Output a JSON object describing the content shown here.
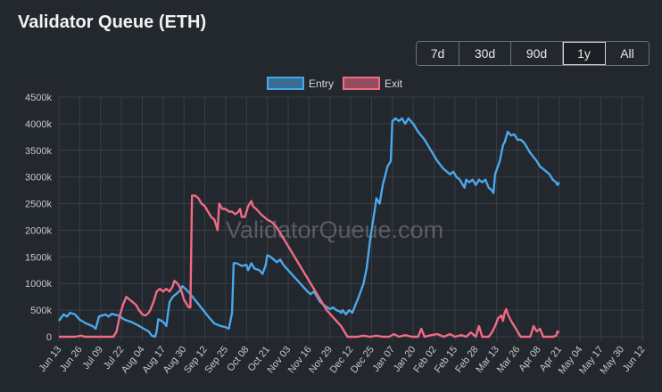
{
  "header": {
    "title": "Validator Queue (ETH)"
  },
  "range_buttons": [
    {
      "label": "7d",
      "active": false
    },
    {
      "label": "30d",
      "active": false
    },
    {
      "label": "90d",
      "active": false
    },
    {
      "label": "1y",
      "active": true
    },
    {
      "label": "All",
      "active": false
    }
  ],
  "watermark": "ValidatorQueue.com",
  "chart_data": {
    "type": "line",
    "title": "Validator Queue (ETH)",
    "xlabel": "",
    "ylabel": "",
    "ylim": [
      0,
      4500000
    ],
    "grid": true,
    "legend_position": "top-center",
    "y_ticks": [
      "0",
      "500k",
      "1000k",
      "1500k",
      "2000k",
      "2500k",
      "3000k",
      "3500k",
      "4000k",
      "4500k"
    ],
    "x_ticks": [
      "Jun 13",
      "Jun 26",
      "Jul 09",
      "Jul 22",
      "Aug 04",
      "Aug 17",
      "Aug 30",
      "Sep 12",
      "Sep 25",
      "Oct 08",
      "Oct 21",
      "Nov 03",
      "Nov 16",
      "Nov 29",
      "Dec 12",
      "Dec 25",
      "Jan 07",
      "Jan 20",
      "Feb 02",
      "Feb 15",
      "Feb 28",
      "Mar 13",
      "Mar 26",
      "Apr 08",
      "Apr 21",
      "May 04",
      "May 17",
      "May 30",
      "Jun 12"
    ],
    "series": [
      {
        "name": "Entry",
        "color": "#4aa8ea",
        "points": [
          [
            0,
            300000
          ],
          [
            3,
            420000
          ],
          [
            5,
            380000
          ],
          [
            7,
            450000
          ],
          [
            10,
            420000
          ],
          [
            13,
            320000
          ],
          [
            17,
            250000
          ],
          [
            21,
            200000
          ],
          [
            23,
            150000
          ],
          [
            25,
            380000
          ],
          [
            29,
            420000
          ],
          [
            31,
            380000
          ],
          [
            33,
            430000
          ],
          [
            37,
            400000
          ],
          [
            41,
            320000
          ],
          [
            45,
            280000
          ],
          [
            49,
            220000
          ],
          [
            53,
            150000
          ],
          [
            56,
            100000
          ],
          [
            58,
            20000
          ],
          [
            60,
            0
          ],
          [
            61,
            100000
          ],
          [
            62,
            330000
          ],
          [
            64,
            300000
          ],
          [
            66,
            250000
          ],
          [
            67,
            200000
          ],
          [
            69,
            650000
          ],
          [
            71,
            750000
          ],
          [
            73,
            800000
          ],
          [
            75,
            850000
          ],
          [
            77,
            950000
          ],
          [
            79,
            900000
          ],
          [
            82,
            800000
          ],
          [
            86,
            650000
          ],
          [
            90,
            500000
          ],
          [
            94,
            350000
          ],
          [
            97,
            250000
          ],
          [
            101,
            200000
          ],
          [
            104,
            180000
          ],
          [
            106,
            150000
          ],
          [
            108,
            450000
          ],
          [
            109,
            1380000
          ],
          [
            111,
            1380000
          ],
          [
            114,
            1330000
          ],
          [
            117,
            1350000
          ],
          [
            118,
            1250000
          ],
          [
            120,
            1380000
          ],
          [
            122,
            1280000
          ],
          [
            125,
            1250000
          ],
          [
            127,
            1180000
          ],
          [
            129,
            1350000
          ],
          [
            130,
            1530000
          ],
          [
            132,
            1500000
          ],
          [
            134,
            1450000
          ],
          [
            136,
            1400000
          ],
          [
            138,
            1450000
          ],
          [
            140,
            1350000
          ],
          [
            143,
            1250000
          ],
          [
            146,
            1150000
          ],
          [
            149,
            1050000
          ],
          [
            152,
            950000
          ],
          [
            155,
            850000
          ],
          [
            157,
            800000
          ],
          [
            159,
            850000
          ],
          [
            161,
            750000
          ],
          [
            163,
            650000
          ],
          [
            166,
            580000
          ],
          [
            169,
            520000
          ],
          [
            171,
            550000
          ],
          [
            173,
            500000
          ],
          [
            175,
            480000
          ],
          [
            176,
            450000
          ],
          [
            177,
            500000
          ],
          [
            178,
            460000
          ],
          [
            179,
            420000
          ],
          [
            181,
            500000
          ],
          [
            183,
            450000
          ],
          [
            185,
            600000
          ],
          [
            187,
            750000
          ],
          [
            190,
            1000000
          ],
          [
            192,
            1300000
          ],
          [
            194,
            1800000
          ],
          [
            196,
            2200000
          ],
          [
            198,
            2600000
          ],
          [
            200,
            2500000
          ],
          [
            202,
            2850000
          ],
          [
            205,
            3200000
          ],
          [
            207,
            3300000
          ],
          [
            208,
            4050000
          ],
          [
            210,
            4100000
          ],
          [
            212,
            4050000
          ],
          [
            214,
            4100000
          ],
          [
            216,
            4000000
          ],
          [
            218,
            4100000
          ],
          [
            221,
            4000000
          ],
          [
            224,
            3850000
          ],
          [
            228,
            3700000
          ],
          [
            232,
            3500000
          ],
          [
            236,
            3300000
          ],
          [
            240,
            3150000
          ],
          [
            244,
            3050000
          ],
          [
            246,
            3100000
          ],
          [
            248,
            3000000
          ],
          [
            250,
            2950000
          ],
          [
            252,
            2850000
          ],
          [
            253,
            2800000
          ],
          [
            254,
            2950000
          ],
          [
            256,
            2900000
          ],
          [
            258,
            2950000
          ],
          [
            260,
            2850000
          ],
          [
            262,
            2950000
          ],
          [
            264,
            2900000
          ],
          [
            266,
            2950000
          ],
          [
            268,
            2800000
          ],
          [
            270,
            2750000
          ],
          [
            271,
            2700000
          ],
          [
            272,
            3050000
          ],
          [
            275,
            3300000
          ],
          [
            277,
            3600000
          ],
          [
            278,
            3650000
          ],
          [
            280,
            3850000
          ],
          [
            282,
            3780000
          ],
          [
            284,
            3800000
          ],
          [
            286,
            3700000
          ],
          [
            288,
            3700000
          ],
          [
            290,
            3650000
          ],
          [
            294,
            3450000
          ],
          [
            298,
            3300000
          ],
          [
            300,
            3200000
          ],
          [
            302,
            3150000
          ],
          [
            304,
            3100000
          ],
          [
            306,
            3050000
          ],
          [
            308,
            2950000
          ],
          [
            310,
            2900000
          ],
          [
            311,
            2850000
          ],
          [
            312,
            2900000
          ]
        ]
      },
      {
        "name": "Exit",
        "color": "#f26b85",
        "points": [
          [
            0,
            0
          ],
          [
            5,
            0
          ],
          [
            10,
            0
          ],
          [
            14,
            20000
          ],
          [
            16,
            0
          ],
          [
            22,
            0
          ],
          [
            26,
            0
          ],
          [
            30,
            0
          ],
          [
            34,
            0
          ],
          [
            36,
            100000
          ],
          [
            38,
            400000
          ],
          [
            40,
            600000
          ],
          [
            42,
            750000
          ],
          [
            44,
            700000
          ],
          [
            46,
            650000
          ],
          [
            48,
            600000
          ],
          [
            50,
            500000
          ],
          [
            52,
            420000
          ],
          [
            54,
            400000
          ],
          [
            56,
            450000
          ],
          [
            57,
            500000
          ],
          [
            59,
            650000
          ],
          [
            61,
            850000
          ],
          [
            63,
            900000
          ],
          [
            65,
            850000
          ],
          [
            67,
            900000
          ],
          [
            69,
            850000
          ],
          [
            71,
            950000
          ],
          [
            72,
            1050000
          ],
          [
            74,
            1000000
          ],
          [
            76,
            900000
          ],
          [
            78,
            700000
          ],
          [
            80,
            600000
          ],
          [
            81,
            550000
          ],
          [
            82,
            550000
          ],
          [
            83,
            2650000
          ],
          [
            85,
            2650000
          ],
          [
            87,
            2600000
          ],
          [
            89,
            2500000
          ],
          [
            91,
            2450000
          ],
          [
            93,
            2350000
          ],
          [
            95,
            2250000
          ],
          [
            97,
            2200000
          ],
          [
            98,
            2100000
          ],
          [
            99,
            2000000
          ],
          [
            100,
            2500000
          ],
          [
            102,
            2400000
          ],
          [
            104,
            2400000
          ],
          [
            106,
            2350000
          ],
          [
            108,
            2350000
          ],
          [
            110,
            2300000
          ],
          [
            112,
            2350000
          ],
          [
            113,
            2400000
          ],
          [
            114,
            2250000
          ],
          [
            116,
            2250000
          ],
          [
            118,
            2450000
          ],
          [
            120,
            2550000
          ],
          [
            121,
            2450000
          ],
          [
            123,
            2400000
          ],
          [
            126,
            2300000
          ],
          [
            128,
            2250000
          ],
          [
            130,
            2200000
          ],
          [
            133,
            2150000
          ],
          [
            136,
            2050000
          ],
          [
            139,
            1900000
          ],
          [
            142,
            1750000
          ],
          [
            145,
            1600000
          ],
          [
            148,
            1450000
          ],
          [
            151,
            1300000
          ],
          [
            154,
            1150000
          ],
          [
            157,
            1000000
          ],
          [
            160,
            850000
          ],
          [
            163,
            700000
          ],
          [
            165,
            600000
          ],
          [
            167,
            500000
          ],
          [
            170,
            400000
          ],
          [
            173,
            300000
          ],
          [
            176,
            200000
          ],
          [
            178,
            100000
          ],
          [
            180,
            0
          ],
          [
            186,
            0
          ],
          [
            190,
            20000
          ],
          [
            194,
            0
          ],
          [
            198,
            20000
          ],
          [
            202,
            0
          ],
          [
            206,
            0
          ],
          [
            209,
            50000
          ],
          [
            212,
            0
          ],
          [
            216,
            30000
          ],
          [
            220,
            0
          ],
          [
            224,
            0
          ],
          [
            226,
            150000
          ],
          [
            228,
            0
          ],
          [
            232,
            30000
          ],
          [
            236,
            50000
          ],
          [
            240,
            0
          ],
          [
            244,
            50000
          ],
          [
            247,
            0
          ],
          [
            251,
            30000
          ],
          [
            254,
            0
          ],
          [
            257,
            80000
          ],
          [
            260,
            0
          ],
          [
            262,
            200000
          ],
          [
            264,
            0
          ],
          [
            268,
            0
          ],
          [
            270,
            80000
          ],
          [
            272,
            200000
          ],
          [
            274,
            350000
          ],
          [
            276,
            400000
          ],
          [
            277,
            300000
          ],
          [
            278,
            450000
          ],
          [
            279,
            520000
          ],
          [
            280,
            420000
          ],
          [
            282,
            300000
          ],
          [
            284,
            200000
          ],
          [
            286,
            100000
          ],
          [
            288,
            0
          ],
          [
            292,
            0
          ],
          [
            294,
            0
          ],
          [
            296,
            200000
          ],
          [
            298,
            100000
          ],
          [
            300,
            150000
          ],
          [
            302,
            0
          ],
          [
            305,
            0
          ],
          [
            308,
            0
          ],
          [
            310,
            20000
          ],
          [
            311,
            100000
          ],
          [
            312,
            80000
          ]
        ]
      }
    ]
  }
}
